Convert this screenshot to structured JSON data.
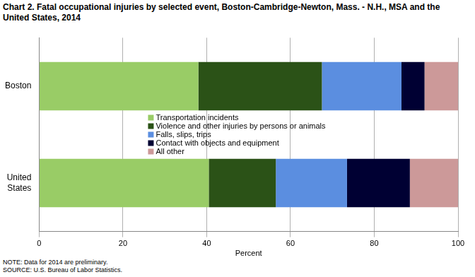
{
  "chart_data": {
    "type": "bar",
    "orientation": "horizontal",
    "stacked": true,
    "title": "Chart 2. Fatal occupational injuries by selected event, Boston-Cambridge-Newton,  Mass. - N.H., MSA and the United States, 2014",
    "x_label": "Percent",
    "categories": [
      "Boston",
      "United States"
    ],
    "series": [
      {
        "name": "Transportation incidents",
        "color": "#99cc66",
        "values": [
          38,
          40.5
        ]
      },
      {
        "name": "Violence and other injuries by persons or animals",
        "color": "#2b5217",
        "values": [
          29.5,
          16
        ]
      },
      {
        "name": "Falls, slips, trips",
        "color": "#5b8ee0",
        "values": [
          19,
          17
        ]
      },
      {
        "name": "Contact with objects and equipment",
        "color": "#000033",
        "values": [
          5.5,
          15
        ]
      },
      {
        "name": "All other",
        "color": "#cc9999",
        "values": [
          8,
          11.5
        ]
      }
    ],
    "xlim": [
      0,
      100
    ],
    "xticks": [
      0,
      20,
      40,
      60,
      80,
      100
    ],
    "grid": true,
    "legend": "center",
    "annotations": [
      "NOTE: Data for 2014 are preliminary.",
      "SOURCE: U.S. Bureau of Labor Statistics."
    ]
  }
}
